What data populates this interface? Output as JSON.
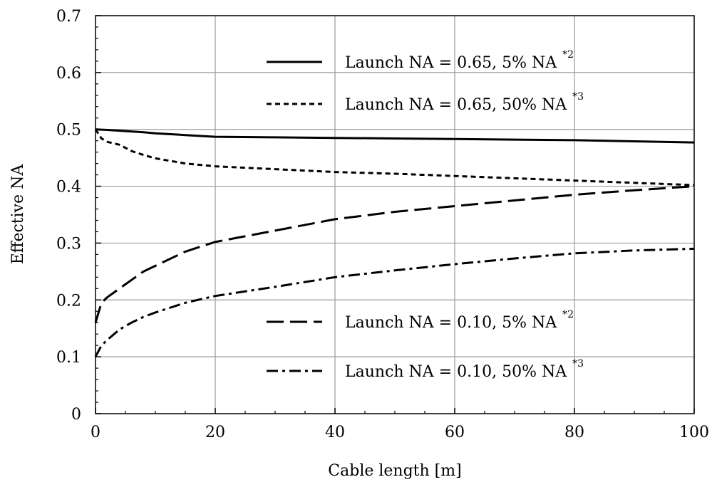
{
  "chart_data": {
    "type": "line",
    "title": "",
    "xlabel": "Cable length [m]",
    "ylabel": "Effective NA",
    "xlim": [
      0,
      100
    ],
    "ylim": [
      0,
      0.7
    ],
    "xticks": [
      0,
      20,
      40,
      60,
      80,
      100
    ],
    "xtick_labels": [
      "0",
      "20",
      "40",
      "60",
      "80",
      "100"
    ],
    "yticks": [
      0,
      0.1,
      0.2,
      0.3,
      0.4,
      0.5,
      0.6,
      0.7
    ],
    "ytick_labels": [
      "0",
      "0.1",
      "0.2",
      "0.3",
      "0.4",
      "0.5",
      "0.6",
      "0.7"
    ],
    "grid": true,
    "series": [
      {
        "name": "Launch NA = 0.65, 5% NA",
        "footnote": "*2",
        "style": "solid",
        "x": [
          0,
          2,
          5,
          8,
          10,
          15,
          20,
          30,
          40,
          50,
          60,
          70,
          80,
          90,
          100
        ],
        "y": [
          0.5,
          0.499,
          0.497,
          0.495,
          0.493,
          0.49,
          0.487,
          0.486,
          0.485,
          0.484,
          0.483,
          0.482,
          0.481,
          0.479,
          0.477
        ]
      },
      {
        "name": "Launch NA = 0.65, 50% NA",
        "footnote": "*3",
        "style": "short-dash",
        "x": [
          0,
          1,
          2,
          4,
          6,
          8,
          10,
          15,
          20,
          30,
          40,
          50,
          60,
          70,
          80,
          90,
          100
        ],
        "y": [
          0.5,
          0.484,
          0.478,
          0.473,
          0.462,
          0.455,
          0.449,
          0.44,
          0.435,
          0.43,
          0.425,
          0.422,
          0.418,
          0.414,
          0.41,
          0.406,
          0.402
        ]
      },
      {
        "name": "Launch NA = 0.10, 5% NA",
        "footnote": "*2",
        "style": "long-dash",
        "x": [
          0,
          1,
          2,
          4,
          6,
          8,
          10,
          15,
          20,
          30,
          40,
          50,
          60,
          70,
          80,
          90,
          100
        ],
        "y": [
          0.16,
          0.195,
          0.205,
          0.22,
          0.235,
          0.25,
          0.26,
          0.285,
          0.302,
          0.322,
          0.342,
          0.355,
          0.365,
          0.375,
          0.385,
          0.393,
          0.4
        ]
      },
      {
        "name": "Launch NA = 0.10, 50% NA",
        "footnote": "*3",
        "style": "dash-dot",
        "x": [
          0,
          1,
          2,
          4,
          6,
          8,
          10,
          15,
          20,
          30,
          40,
          50,
          60,
          70,
          80,
          90,
          100
        ],
        "y": [
          0.1,
          0.12,
          0.13,
          0.148,
          0.16,
          0.17,
          0.178,
          0.195,
          0.207,
          0.223,
          0.24,
          0.252,
          0.263,
          0.273,
          0.282,
          0.287,
          0.29
        ]
      }
    ],
    "legends": [
      {
        "placement": "top-right",
        "series_indices": [
          0,
          1
        ]
      },
      {
        "placement": "bottom-right",
        "series_indices": [
          2,
          3
        ]
      }
    ]
  }
}
